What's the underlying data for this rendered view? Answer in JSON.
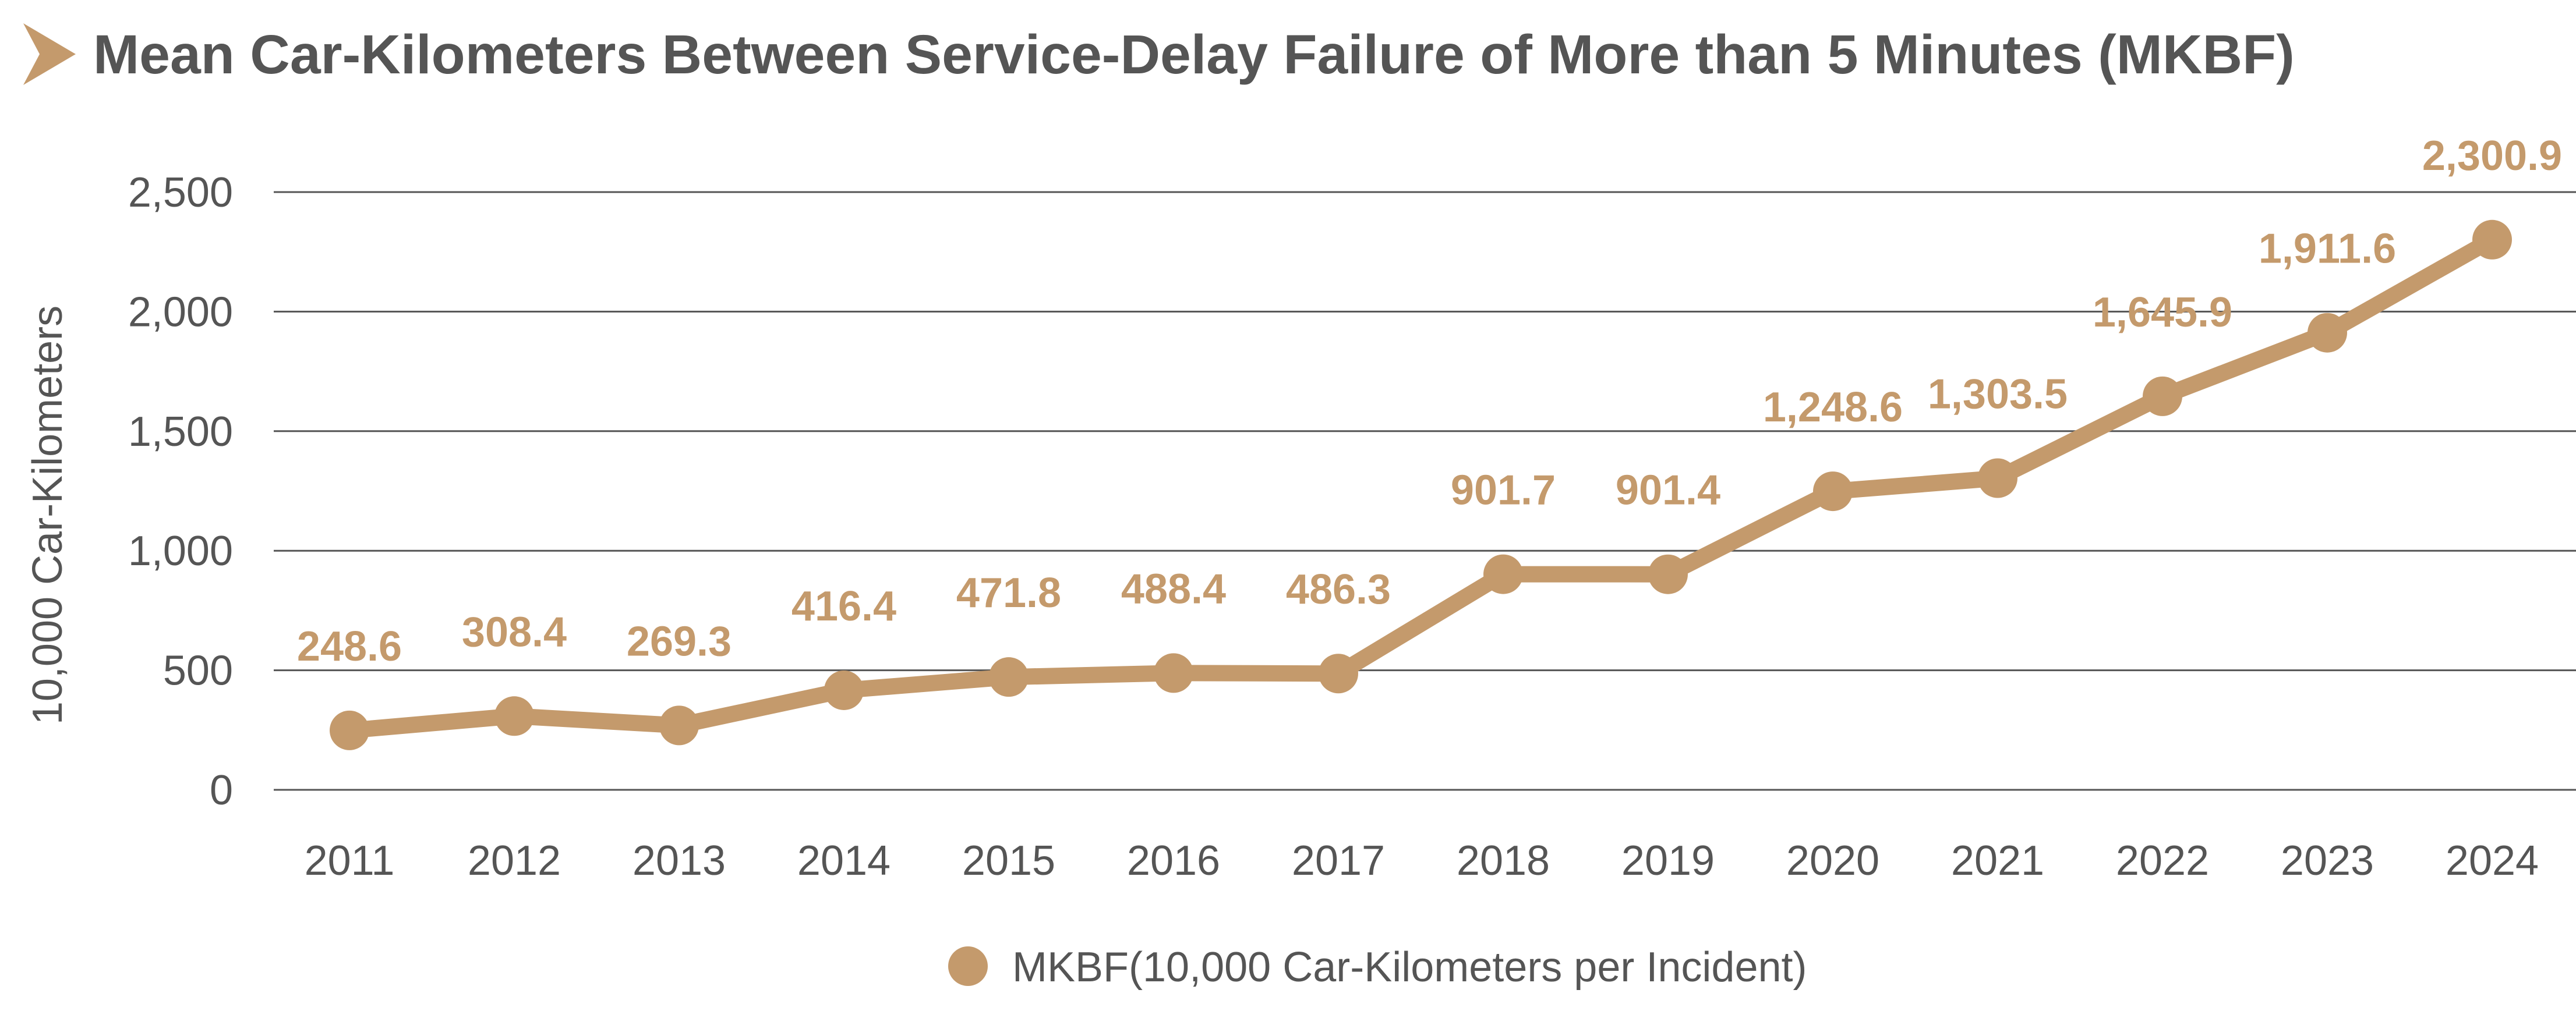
{
  "chart_data": {
    "type": "line",
    "title": "Mean Car-Kilometers Between Service-Delay Failure of More than 5 Minutes (MKBF)",
    "xlabel": "",
    "ylabel": "10,000 Car-Kilometers",
    "categories": [
      "2011",
      "2012",
      "2013",
      "2014",
      "2015",
      "2016",
      "2017",
      "2018",
      "2019",
      "2020",
      "2021",
      "2022",
      "2023",
      "2024"
    ],
    "series": [
      {
        "name": "MKBF(10,000 Car-Kilometers per Incident)",
        "values": [
          248.6,
          308.4,
          269.3,
          416.4,
          471.8,
          488.4,
          486.3,
          901.7,
          901.4,
          1248.6,
          1303.5,
          1645.9,
          1911.6,
          2300.9
        ],
        "labels": [
          "248.6",
          "308.4",
          "269.3",
          "416.4",
          "471.8",
          "488.4",
          "486.3",
          "901.7",
          "901.4",
          "1,248.6",
          "1,303.5",
          "1,645.9",
          "1,911.6",
          "2,300.9"
        ]
      }
    ],
    "ylim": [
      0,
      2500
    ],
    "yticks": [
      0,
      500,
      1000,
      1500,
      2000,
      2500
    ],
    "ytick_labels": [
      "0",
      "500",
      "1,000",
      "1,500",
      "2,000",
      "2,500"
    ],
    "grid": true,
    "legend": "bottom",
    "colors": {
      "series": "#c49a6c",
      "title_marker": "#c49a6c",
      "text": "#555555",
      "grid": "#555555"
    }
  }
}
